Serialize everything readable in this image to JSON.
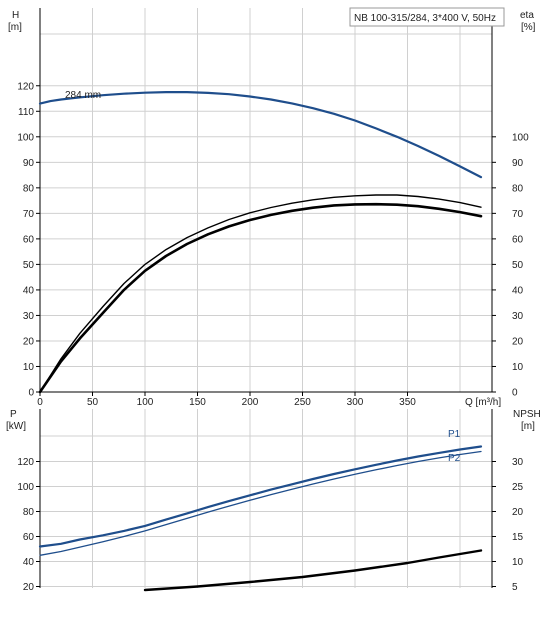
{
  "chart_data": [
    {
      "type": "line",
      "title": "NB 100-315/284, 3*400 V, 50Hz",
      "xlabel": "Q [m³/h]",
      "ylabel_left": {
        "name": "H",
        "unit": "[m]"
      },
      "ylabel_right": {
        "name": "eta",
        "unit": "[%]"
      },
      "x_ticks": [
        0,
        50,
        100,
        150,
        200,
        250,
        300,
        350
      ],
      "y_left_ticks": [
        0,
        10,
        20,
        30,
        40,
        50,
        60,
        70,
        80,
        90,
        100,
        110,
        120
      ],
      "y_right_ticks": [
        0,
        10,
        20,
        30,
        40,
        50,
        60,
        70,
        80,
        90,
        100
      ],
      "xlim": [
        0,
        440
      ],
      "ylim": [
        0,
        140
      ],
      "grid": true,
      "series": [
        {
          "name": "284 mm",
          "axis": "left",
          "color": "#1f4e8c",
          "x": [
            0,
            10,
            20,
            30,
            40,
            60,
            80,
            100,
            120,
            140,
            160,
            180,
            200,
            220,
            240,
            260,
            280,
            300,
            320,
            340,
            360,
            380,
            400,
            420
          ],
          "y": [
            113,
            114,
            114.6,
            115.1,
            115.5,
            116.3,
            116.9,
            117.3,
            117.5,
            117.5,
            117.2,
            116.7,
            115.8,
            114.6,
            113.1,
            111.2,
            109,
            106.4,
            103.3,
            100,
            96.4,
            92.5,
            88.4,
            84.2
          ]
        },
        {
          "axis": "right",
          "color": "#000000",
          "x": [
            0,
            20,
            38,
            60,
            80,
            100,
            120,
            140,
            160,
            180,
            200,
            220,
            240,
            260,
            280,
            300,
            320,
            340,
            360,
            380,
            400,
            420
          ],
          "y": [
            0,
            12,
            21,
            31,
            40,
            47.5,
            53.3,
            58,
            61.8,
            64.9,
            67.4,
            69.4,
            71,
            72.2,
            73.1,
            73.5,
            73.6,
            73.4,
            72.8,
            71.8,
            70.5,
            68.9
          ]
        },
        {
          "axis": "right",
          "color": "#000000",
          "x": [
            0,
            20,
            38,
            60,
            80,
            100,
            120,
            140,
            160,
            180,
            200,
            220,
            240,
            260,
            280,
            300,
            320,
            340,
            360,
            380,
            400,
            420
          ],
          "y": [
            0,
            13,
            23,
            33.5,
            42.5,
            50,
            55.8,
            60.5,
            64.3,
            67.6,
            70.2,
            72.3,
            74,
            75.3,
            76.3,
            76.9,
            77.2,
            77.2,
            76.6,
            75.6,
            74.2,
            72.4
          ]
        }
      ]
    },
    {
      "type": "line",
      "xlabel": "",
      "ylabel_left": {
        "name": "P",
        "unit": "[kW]"
      },
      "ylabel_right": {
        "name": "NPSH",
        "unit": "[m]"
      },
      "y_left_ticks": [
        20,
        40,
        60,
        80,
        100,
        120
      ],
      "y_right_ticks": [
        5,
        10,
        15,
        20,
        25,
        30
      ],
      "xlim": [
        0,
        440
      ],
      "ylim": [
        20,
        135
      ],
      "grid": true,
      "series": [
        {
          "name": "P1",
          "axis": "left",
          "color": "#1f4e8c",
          "x": [
            0,
            20,
            38,
            60,
            80,
            100,
            120,
            140,
            160,
            180,
            200,
            220,
            240,
            260,
            280,
            300,
            320,
            340,
            360,
            380,
            400,
            420
          ],
          "y": [
            52,
            54.2,
            57.6,
            61,
            64.5,
            68.5,
            73.5,
            78.5,
            83.5,
            88.3,
            93,
            97.5,
            101.8,
            106,
            110,
            113.8,
            117.4,
            120.8,
            124,
            126.9,
            129.6,
            132
          ]
        },
        {
          "name": "P2",
          "axis": "left",
          "color": "#1f4e8c",
          "x": [
            0,
            20,
            38,
            60,
            80,
            100,
            120,
            140,
            160,
            180,
            200,
            220,
            240,
            260,
            280,
            300,
            320,
            340,
            360,
            380,
            400,
            420
          ],
          "y": [
            45,
            48,
            51.5,
            55.8,
            60,
            64.5,
            69.5,
            74.5,
            79.5,
            84.3,
            89,
            93.5,
            97.8,
            102,
            106,
            109.8,
            113.4,
            116.8,
            120,
            122.9,
            125.6,
            128
          ]
        },
        {
          "axis": "right",
          "color": "#000000",
          "x": [
            100,
            150,
            200,
            250,
            300,
            350,
            380,
            420
          ],
          "y": [
            4.3,
            5.0,
            5.9,
            6.9,
            8.2,
            9.7,
            10.8,
            12.2
          ]
        }
      ]
    }
  ]
}
